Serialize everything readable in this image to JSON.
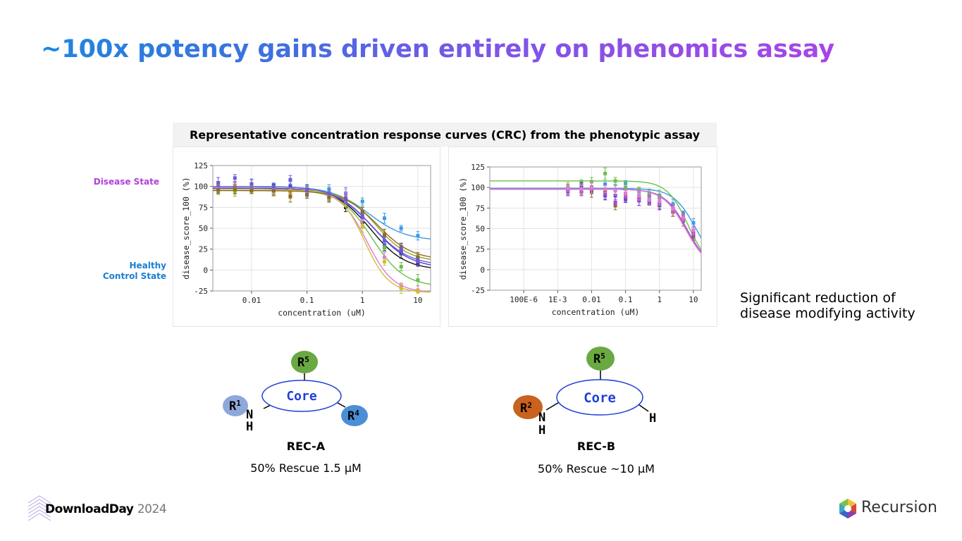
{
  "slide": {
    "title": "~100x potency gains driven entirely on phenomics assay",
    "chart_header": "Representative concentration response curves (CRC) from the phenotypic assay",
    "disease_state_label": "Disease State",
    "healthy_label_line1": "Healthy",
    "healthy_label_line2": "Control State",
    "note_line1": "Significant reduction of",
    "note_line2": "disease modifying activity"
  },
  "molecules": {
    "a": {
      "name": "REC-A",
      "rescue": "50% Rescue 1.5 µM",
      "core": "Core",
      "r_left": "R",
      "r_left_sup": "1",
      "r_top": "R",
      "r_top_sup": "5",
      "r_right": "R",
      "r_right_sup": "4",
      "n": "N",
      "h": "H"
    },
    "b": {
      "name": "REC-B",
      "rescue": "50% Rescue ~10 µM",
      "core": "Core",
      "r_left": "R",
      "r_left_sup": "2",
      "r_top": "R",
      "r_top_sup": "5",
      "n": "N",
      "h": "H",
      "h_right": "H"
    }
  },
  "footer": {
    "brand": "DownloadDay",
    "year": "2024",
    "company": "Recursion"
  },
  "colors": {
    "title_start": "#1f86e0",
    "title_end": "#a944e6",
    "disease": "#b13fd8",
    "healthy": "#1a7fd4",
    "r5": "#6aa842",
    "r1": "#8fa8dc",
    "r4": "#4a8fd6",
    "r2": "#c8621e",
    "core_text": "#1f3fd8",
    "core_ring": "#1f3fd8"
  },
  "chart_data": [
    {
      "type": "line",
      "xscale": "log",
      "xlabel": "concentration (uM)",
      "ylabel": "disease_score_100 (%)",
      "xlim": [
        0.002,
        17
      ],
      "ylim": [
        -25,
        125
      ],
      "xticks": [
        "0.01",
        "0.1",
        "1",
        "10"
      ],
      "yticks": [
        "125",
        "100",
        "75",
        "50",
        "25",
        "0",
        "-25"
      ],
      "grid": true,
      "x": [
        0.0025,
        0.005,
        0.01,
        0.025,
        0.05,
        0.1,
        0.25,
        0.5,
        1,
        2.5,
        5,
        10
      ],
      "series": [
        {
          "color": "#3a9be8",
          "top": 100,
          "bottom": 35,
          "ec50": 1.3,
          "hill": 1.3,
          "values": [
            100,
            100,
            101,
            100,
            100,
            99,
            97,
            92,
            82,
            62,
            50,
            41
          ]
        },
        {
          "color": "#111111",
          "top": 98,
          "bottom": 0,
          "ec50": 1.4,
          "hill": 1.4,
          "values": [
            100,
            98,
            97,
            96,
            95,
            92,
            86,
            75,
            57,
            27,
            20,
            8
          ]
        },
        {
          "color": "#4a3fd0",
          "top": 98,
          "bottom": 2,
          "ec50": 1.6,
          "hill": 1.3,
          "values": [
            97,
            99,
            99,
            97,
            100,
            93,
            88,
            80,
            62,
            30,
            22,
            12
          ]
        },
        {
          "color": "#a0a020",
          "top": 96,
          "bottom": 10,
          "ec50": 1.8,
          "hill": 1.5,
          "values": [
            98,
            96,
            98,
            95,
            94,
            93,
            88,
            82,
            68,
            40,
            25,
            14
          ]
        },
        {
          "color": "#6ac04a",
          "top": 96,
          "bottom": -20,
          "ec50": 1.5,
          "hill": 1.5,
          "values": [
            97,
            95,
            96,
            95,
            95,
            94,
            90,
            85,
            70,
            27,
            4,
            -12
          ]
        },
        {
          "color": "#e07ad8",
          "top": 96,
          "bottom": -27,
          "ec50": 1.2,
          "hill": 1.8,
          "values": [
            98,
            100,
            98,
            96,
            92,
            95,
            87,
            90,
            60,
            15,
            -19,
            -24
          ]
        },
        {
          "color": "#d0c030",
          "top": 96,
          "bottom": -27,
          "ec50": 1.1,
          "hill": 2.0,
          "values": [
            96,
            98,
            99,
            95,
            90,
            94,
            86,
            82,
            52,
            10,
            -22,
            -26
          ]
        },
        {
          "color": "#8a6f20",
          "top": 95,
          "bottom": 12,
          "ec50": 1.9,
          "hill": 1.4,
          "values": [
            96,
            97,
            95,
            95,
            88,
            90,
            87,
            84,
            70,
            42,
            28,
            15
          ]
        },
        {
          "color": "#6a5ae0",
          "top": 100,
          "bottom": 5,
          "ec50": 1.5,
          "hill": 1.3,
          "values": [
            104,
            110,
            103,
            100,
            108,
            95,
            92,
            85,
            65,
            35,
            25,
            10
          ]
        }
      ]
    },
    {
      "type": "line",
      "xscale": "log",
      "xlabel": "concentration (uM)",
      "ylabel": "disease_score_100 (%)",
      "xlim": [
        1e-05,
        17
      ],
      "ylim": [
        -25,
        125
      ],
      "xticks": [
        "100E-6",
        "1E-3",
        "0.01",
        "0.1",
        "1",
        "10"
      ],
      "yticks": [
        "125",
        "100",
        "75",
        "50",
        "25",
        "0",
        "-25"
      ],
      "grid": true,
      "x": [
        0.002,
        0.005,
        0.01,
        0.025,
        0.05,
        0.1,
        0.25,
        0.5,
        1,
        2.5,
        5,
        10
      ],
      "series": [
        {
          "color": "#3a9be8",
          "top": 99,
          "bottom": 0,
          "ec50": 12,
          "hill": 1.3,
          "values": [
            98,
            95,
            100,
            104,
            97,
            105,
            95,
            90,
            88,
            80,
            68,
            57
          ]
        },
        {
          "color": "#6ac04a",
          "top": 108,
          "bottom": 0,
          "ec50": 7,
          "hill": 1.4,
          "values": [
            100,
            106,
            107,
            117,
            108,
            100,
            97,
            93,
            90,
            75,
            62,
            45
          ]
        },
        {
          "color": "#4a3fd0",
          "top": 98,
          "bottom": 0,
          "ec50": 6,
          "hill": 1.3,
          "values": [
            96,
            100,
            98,
            90,
            90,
            86,
            84,
            82,
            78,
            72,
            62,
            42
          ]
        },
        {
          "color": "#8a6f20",
          "top": 98,
          "bottom": 0,
          "ec50": 6,
          "hill": 1.3,
          "values": [
            97,
            96,
            94,
            95,
            78,
            90,
            87,
            85,
            80,
            70,
            60,
            40
          ]
        },
        {
          "color": "#a04ad8",
          "top": 98,
          "bottom": 0,
          "ec50": 6.5,
          "hill": 1.3,
          "values": [
            95,
            97,
            98,
            92,
            82,
            88,
            85,
            84,
            80,
            73,
            65,
            45
          ]
        },
        {
          "color": "#e07ad8",
          "top": 98,
          "bottom": 0,
          "ec50": 6,
          "hill": 1.3,
          "values": [
            99,
            98,
            100,
            98,
            96,
            93,
            90,
            85,
            83,
            74,
            63,
            48
          ]
        }
      ]
    }
  ]
}
